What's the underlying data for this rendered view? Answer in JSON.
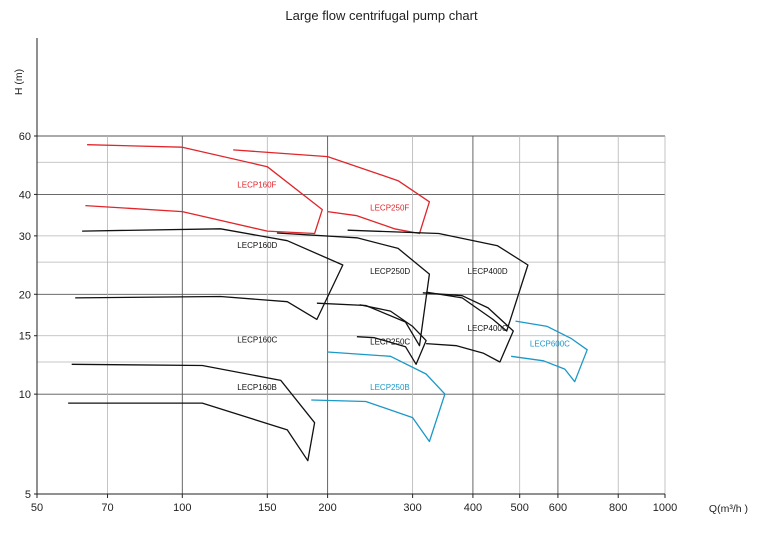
{
  "chart_data": {
    "type": "line",
    "title": "Large flow centrifugal pump chart",
    "xlabel": "Q(m³/h )",
    "ylabel": "H (m)",
    "xscale": "log",
    "yscale": "log",
    "xlim": [
      50,
      1000
    ],
    "ylim": [
      5,
      60
    ],
    "xticks": [
      {
        "value": 50,
        "label": "50"
      },
      {
        "value": 70,
        "label": "70"
      },
      {
        "value": 100,
        "label": "100"
      },
      {
        "value": 150,
        "label": "150"
      },
      {
        "value": 200,
        "label": "200"
      },
      {
        "value": 300,
        "label": "300"
      },
      {
        "value": 400,
        "label": "400"
      },
      {
        "value": 500,
        "label": "500"
      },
      {
        "value": 600,
        "label": "600"
      },
      {
        "value": 800,
        "label": "800"
      },
      {
        "value": 1000,
        "label": "1000"
      }
    ],
    "yticks": [
      {
        "value": 5,
        "label": "5"
      },
      {
        "value": 10,
        "label": "10"
      },
      {
        "value": 15,
        "label": "15"
      },
      {
        "value": 20,
        "label": "20"
      },
      {
        "value": 30,
        "label": "30"
      },
      {
        "value": 40,
        "label": "40"
      },
      {
        "value": 60,
        "label": "60"
      }
    ],
    "minor_hlines": [
      12.5,
      25,
      50
    ],
    "major_vlines": [
      100,
      200,
      400,
      600
    ],
    "grid": true,
    "legend": "none",
    "colors": {
      "red": "#e0262b",
      "black": "#111111",
      "blue": "#1b98c8",
      "grid": "#b5b5b5",
      "major": "#555555"
    },
    "series": [
      {
        "name": "LECP160F",
        "color": "red",
        "label_at": [
          130,
          42
        ],
        "points": [
          [
            63.5,
            56.5
          ],
          [
            100,
            55.5
          ],
          [
            150,
            48.5
          ],
          [
            195,
            36
          ],
          [
            188,
            30.5
          ],
          [
            150,
            31
          ],
          [
            100,
            35.5
          ],
          [
            63,
            37
          ]
        ]
      },
      {
        "name": "LECP250F",
        "color": "red",
        "label_at": [
          245,
          35.8
        ],
        "points": [
          [
            127.5,
            54.5
          ],
          [
            200,
            52
          ],
          [
            280,
            44
          ],
          [
            325,
            38
          ],
          [
            310,
            30.5
          ],
          [
            275,
            31.5
          ],
          [
            230,
            34.5
          ],
          [
            200,
            35.5
          ]
        ]
      },
      {
        "name": "LECP160D",
        "color": "black",
        "label_at": [
          130,
          27.6
        ],
        "points": [
          [
            62,
            31
          ],
          [
            120,
            31.5
          ],
          [
            165,
            29
          ],
          [
            215,
            24.5
          ],
          [
            190,
            16.8
          ],
          [
            165,
            19
          ],
          [
            120,
            19.7
          ],
          [
            60,
            19.5
          ]
        ]
      },
      {
        "name": "LECP250D",
        "color": "black",
        "label_at": [
          245,
          23
        ],
        "points": [
          [
            157,
            30.6
          ],
          [
            230,
            29.6
          ],
          [
            280,
            27.5
          ],
          [
            325,
            23
          ],
          [
            310,
            14
          ],
          [
            290,
            16.5
          ],
          [
            240,
            18.5
          ],
          [
            190,
            18.8
          ]
        ]
      },
      {
        "name": "LECP400D",
        "color": "black",
        "label_at": [
          390,
          23
        ],
        "points": [
          [
            220,
            31.2
          ],
          [
            340,
            30.5
          ],
          [
            450,
            28
          ],
          [
            520,
            24.5
          ],
          [
            470,
            15.5
          ],
          [
            440,
            16.8
          ],
          [
            380,
            19.5
          ],
          [
            320,
            20.3
          ]
        ]
      },
      {
        "name": "LECP160C",
        "color": "black",
        "label_at": [
          130,
          14.3
        ],
        "points": [
          [
            59,
            12.3
          ],
          [
            110,
            12.2
          ],
          [
            160,
            11
          ],
          [
            188,
            8.2
          ],
          [
            182,
            6.3
          ],
          [
            165,
            7.8
          ],
          [
            110,
            9.4
          ],
          [
            58,
            9.4
          ]
        ]
      },
      {
        "name": "LECP250C",
        "color": "black",
        "label_at": [
          245,
          14.1
        ],
        "points": [
          [
            233,
            18.6
          ],
          [
            270,
            17.8
          ],
          [
            300,
            16
          ],
          [
            320,
            14.5
          ],
          [
            305,
            12.3
          ],
          [
            290,
            13.9
          ],
          [
            250,
            14.8
          ],
          [
            230,
            14.9
          ]
        ]
      },
      {
        "name": "LECP400C",
        "color": "black",
        "label_at": [
          390,
          15.5
        ],
        "points": [
          [
            315,
            20.2
          ],
          [
            380,
            19.8
          ],
          [
            430,
            18.2
          ],
          [
            485,
            15.5
          ],
          [
            455,
            12.5
          ],
          [
            420,
            13.3
          ],
          [
            370,
            14
          ],
          [
            320,
            14.2
          ]
        ]
      },
      {
        "name": "LECP600C",
        "color": "blue",
        "label_at": [
          525,
          13.9
        ],
        "points": [
          [
            490,
            16.6
          ],
          [
            570,
            16
          ],
          [
            640,
            14.7
          ],
          [
            690,
            13.6
          ],
          [
            650,
            10.9
          ],
          [
            620,
            11.9
          ],
          [
            560,
            12.6
          ],
          [
            480,
            13
          ]
        ]
      },
      {
        "name": "LECP250B",
        "color": "blue",
        "label_at": [
          245,
          10.3
        ],
        "points": [
          [
            200,
            13.4
          ],
          [
            270,
            13
          ],
          [
            320,
            11.5
          ],
          [
            350,
            10
          ],
          [
            325,
            7.2
          ],
          [
            300,
            8.5
          ],
          [
            240,
            9.5
          ],
          [
            185,
            9.6
          ]
        ]
      },
      {
        "name": "LECP160B",
        "color": "black",
        "label_at": [
          130,
          10.3
        ]
      }
    ]
  }
}
